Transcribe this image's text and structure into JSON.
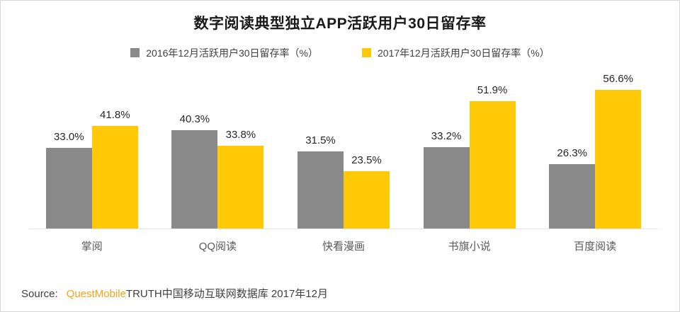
{
  "title": "数字阅读典型独立APP活跃用户30日留存率",
  "legend": [
    {
      "label": "2016年12月活跃用户30日留存率（%）",
      "color": "#898989"
    },
    {
      "label": "2017年12月活跃用户30日留存率（%）",
      "color": "#ffc907"
    }
  ],
  "chart_data": {
    "type": "bar",
    "title": "数字阅读典型独立APP活跃用户30日留存率",
    "categories": [
      "掌阅",
      "QQ阅读",
      "快看漫画",
      "书旗小说",
      "百度阅读"
    ],
    "series": [
      {
        "name": "2016年12月活跃用户30日留存率（%）",
        "color": "#898989",
        "values": [
          33.0,
          40.3,
          31.5,
          33.2,
          26.3
        ]
      },
      {
        "name": "2017年12月活跃用户30日留存率（%）",
        "color": "#ffc907",
        "values": [
          41.8,
          33.8,
          23.5,
          51.9,
          56.6
        ]
      }
    ],
    "value_suffix": "%",
    "ylim": [
      0,
      60
    ],
    "grid": false,
    "legend_position": "top",
    "value_labels": "above-bars"
  },
  "source": {
    "prefix": "Source:",
    "brand": "QuestMobile",
    "rest": "TRUTH中国移动互联网数据库 2017年12月",
    "brand_color": "#f7a21b"
  }
}
